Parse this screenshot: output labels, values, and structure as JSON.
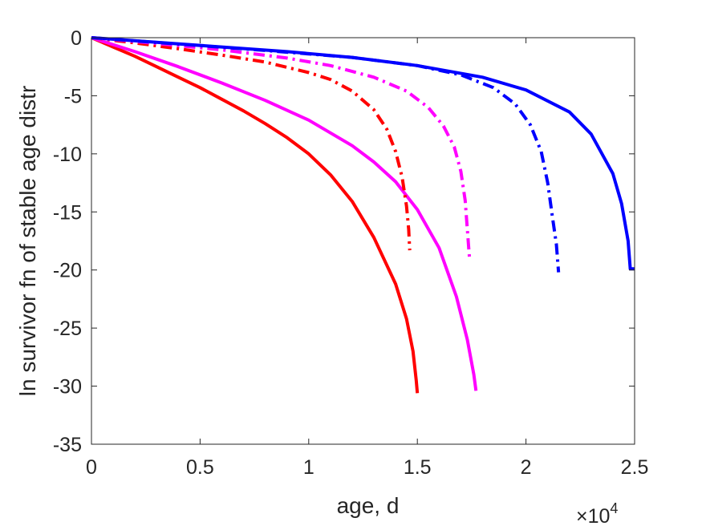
{
  "chart_data": {
    "type": "line",
    "title": "",
    "xlabel": "age, d",
    "ylabel": "ln survivor fn of stable age distr",
    "x_exponent_label": "×10",
    "x_exponent_power": "4",
    "xlim": [
      0,
      2.5
    ],
    "ylim": [
      -35,
      0
    ],
    "x_scale_multiplier": 10000,
    "x_ticks": [
      0,
      0.5,
      1,
      1.5,
      2,
      2.5
    ],
    "x_tick_labels": [
      "0",
      "0.5",
      "1",
      "1.5",
      "2",
      "2.5"
    ],
    "y_ticks": [
      0,
      -5,
      -10,
      -15,
      -20,
      -25,
      -30,
      -35
    ],
    "y_tick_labels": [
      "0",
      "-5",
      "-10",
      "-15",
      "-20",
      "-25",
      "-30",
      "-35"
    ],
    "grid": false,
    "legend": null,
    "series": [
      {
        "color": "#ff0000",
        "style": "solid",
        "points": [
          [
            0,
            0
          ],
          [
            0.1,
            -0.8
          ],
          [
            0.2,
            -1.6
          ],
          [
            0.3,
            -2.5
          ],
          [
            0.4,
            -3.4
          ],
          [
            0.5,
            -4.3
          ],
          [
            0.6,
            -5.3
          ],
          [
            0.7,
            -6.3
          ],
          [
            0.8,
            -7.4
          ],
          [
            0.9,
            -8.6
          ],
          [
            1.0,
            -10.0
          ],
          [
            1.1,
            -11.8
          ],
          [
            1.2,
            -14.1
          ],
          [
            1.3,
            -17.2
          ],
          [
            1.4,
            -21.2
          ],
          [
            1.45,
            -24.2
          ],
          [
            1.48,
            -27.0
          ],
          [
            1.495,
            -29.5
          ],
          [
            1.5,
            -30.6
          ]
        ]
      },
      {
        "color": "#ff00ff",
        "style": "solid",
        "points": [
          [
            0,
            0
          ],
          [
            0.2,
            -1.2
          ],
          [
            0.4,
            -2.5
          ],
          [
            0.6,
            -3.9
          ],
          [
            0.8,
            -5.4
          ],
          [
            1.0,
            -7.1
          ],
          [
            1.2,
            -9.3
          ],
          [
            1.3,
            -10.7
          ],
          [
            1.4,
            -12.4
          ],
          [
            1.5,
            -14.8
          ],
          [
            1.6,
            -18.1
          ],
          [
            1.68,
            -22.3
          ],
          [
            1.73,
            -26.0
          ],
          [
            1.76,
            -29.0
          ],
          [
            1.77,
            -30.4
          ]
        ]
      },
      {
        "color": "#0000ff",
        "style": "solid",
        "points": [
          [
            0,
            0
          ],
          [
            0.3,
            -0.4
          ],
          [
            0.6,
            -0.8
          ],
          [
            0.9,
            -1.2
          ],
          [
            1.2,
            -1.7
          ],
          [
            1.5,
            -2.4
          ],
          [
            1.8,
            -3.4
          ],
          [
            2.0,
            -4.5
          ],
          [
            2.2,
            -6.4
          ],
          [
            2.3,
            -8.3
          ],
          [
            2.4,
            -11.7
          ],
          [
            2.44,
            -14.3
          ],
          [
            2.47,
            -17.5
          ],
          [
            2.48,
            -19.9
          ],
          [
            2.5,
            -19.9
          ]
        ]
      },
      {
        "color": "#ff0000",
        "style": "dashdot",
        "points": [
          [
            0,
            0
          ],
          [
            0.2,
            -0.45
          ],
          [
            0.4,
            -0.95
          ],
          [
            0.6,
            -1.5
          ],
          [
            0.8,
            -2.1
          ],
          [
            1.0,
            -3.0
          ],
          [
            1.1,
            -3.6
          ],
          [
            1.2,
            -4.6
          ],
          [
            1.3,
            -6.2
          ],
          [
            1.36,
            -7.9
          ],
          [
            1.4,
            -9.8
          ],
          [
            1.43,
            -12.0
          ],
          [
            1.45,
            -14.5
          ],
          [
            1.46,
            -16.5
          ],
          [
            1.465,
            -18.3
          ]
        ]
      },
      {
        "color": "#ff00ff",
        "style": "dashdot",
        "points": [
          [
            0,
            0
          ],
          [
            0.3,
            -0.5
          ],
          [
            0.6,
            -1.05
          ],
          [
            0.9,
            -1.75
          ],
          [
            1.1,
            -2.4
          ],
          [
            1.3,
            -3.4
          ],
          [
            1.45,
            -4.6
          ],
          [
            1.55,
            -6.0
          ],
          [
            1.62,
            -7.6
          ],
          [
            1.67,
            -9.4
          ],
          [
            1.7,
            -11.5
          ],
          [
            1.72,
            -14.0
          ],
          [
            1.73,
            -16.5
          ],
          [
            1.74,
            -19.0
          ]
        ]
      },
      {
        "color": "#0000ff",
        "style": "dashdot",
        "points": [
          [
            0,
            0
          ],
          [
            0.4,
            -0.55
          ],
          [
            0.8,
            -1.1
          ],
          [
            1.2,
            -1.7
          ],
          [
            1.5,
            -2.4
          ],
          [
            1.7,
            -3.2
          ],
          [
            1.85,
            -4.3
          ],
          [
            1.95,
            -5.7
          ],
          [
            2.02,
            -7.5
          ],
          [
            2.07,
            -9.8
          ],
          [
            2.1,
            -12.5
          ],
          [
            2.12,
            -15.2
          ],
          [
            2.14,
            -17.8
          ],
          [
            2.15,
            -20.2
          ]
        ]
      }
    ]
  }
}
